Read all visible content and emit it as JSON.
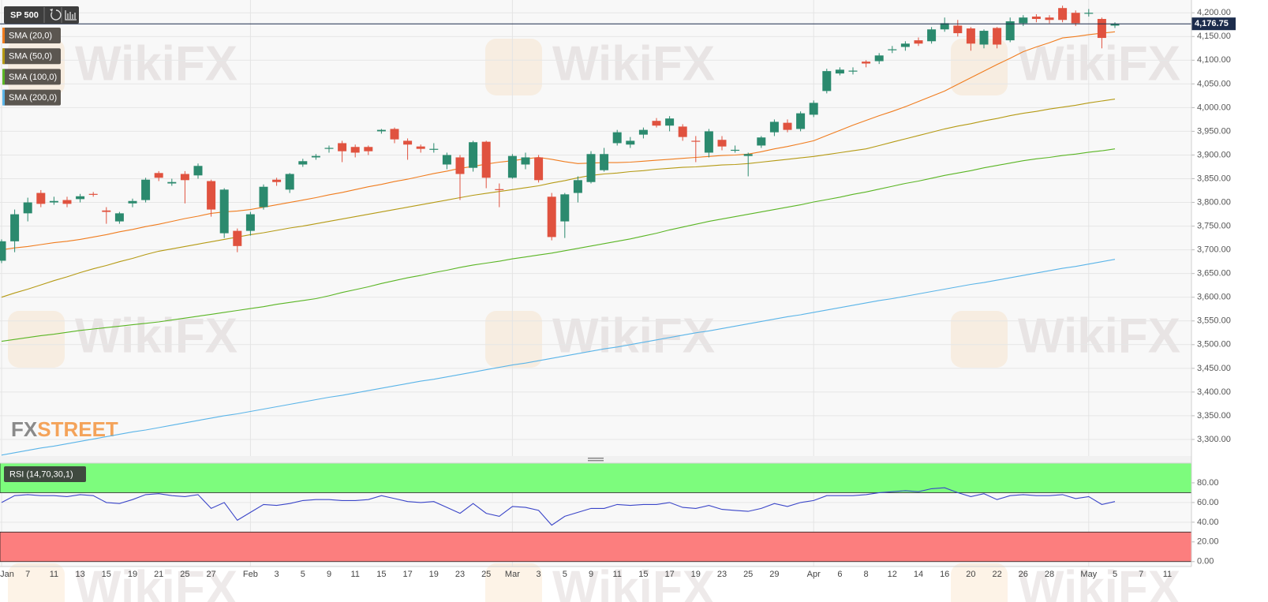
{
  "chart_data": [
    {
      "type": "candlestick",
      "title": "SP 500",
      "watermark": "WikiFX",
      "logo": {
        "first": "FX",
        "second": "STREET"
      },
      "categories": [
        "Jan",
        null,
        "7",
        null,
        "11",
        null,
        "13",
        null,
        "15",
        null,
        "19",
        null,
        "21",
        null,
        "25",
        null,
        "27",
        null,
        null,
        "Feb",
        null,
        "3",
        null,
        "5",
        null,
        "9",
        null,
        "11",
        null,
        "15",
        null,
        "17",
        null,
        "19",
        null,
        "23",
        null,
        "25",
        null,
        "Mar",
        null,
        "3",
        null,
        "5",
        null,
        "9",
        null,
        "11",
        null,
        "15",
        null,
        "17",
        null,
        "19",
        null,
        "23",
        null,
        "25",
        null,
        "29",
        null,
        null,
        "Apr",
        null,
        "6",
        null,
        "8",
        null,
        "12",
        null,
        "14",
        null,
        "16",
        null,
        "20",
        null,
        "22",
        null,
        "26",
        null,
        "28",
        null,
        null,
        "May",
        null,
        "5",
        null,
        "7",
        null,
        "11"
      ],
      "open": [
        3677,
        3718,
        3777,
        3820,
        3800,
        3805,
        3807,
        3818,
        3783,
        3760,
        3798,
        3805,
        3862,
        3840,
        3860,
        3857,
        3845,
        3735,
        3740,
        3740,
        3790,
        3848,
        3827,
        3880,
        3895,
        3913,
        3925,
        3917,
        3917,
        3950,
        3955,
        3930,
        3918,
        3912,
        3880,
        3895,
        3873,
        3928,
        3828,
        3852,
        3880,
        3895,
        3812,
        3760,
        3820,
        3843,
        3868,
        3925,
        3922,
        3943,
        3972,
        3962,
        3960,
        3930,
        3905,
        3932,
        3910,
        3898,
        3920,
        3948,
        3968,
        3955,
        3985,
        4035,
        4072,
        4077,
        4097,
        4098,
        4122,
        4128,
        4142,
        4140,
        4165,
        4173,
        4167,
        4133,
        4168,
        4142,
        4178,
        4192,
        4190,
        4210,
        4200,
        4198,
        4187,
        4173,
        null,
        null,
        null,
        null
      ],
      "high": [
        3722,
        3785,
        3810,
        3826,
        3812,
        3812,
        3818,
        3822,
        3790,
        3780,
        3808,
        3852,
        3866,
        3850,
        3866,
        3882,
        3848,
        3830,
        3745,
        3780,
        3838,
        3852,
        3862,
        3892,
        3902,
        3920,
        3930,
        3922,
        3920,
        3955,
        3958,
        3935,
        3922,
        3925,
        3905,
        3900,
        3930,
        3930,
        3840,
        3902,
        3905,
        3900,
        3820,
        3820,
        3855,
        3908,
        3915,
        3953,
        3938,
        3958,
        3978,
        3982,
        3965,
        3940,
        3955,
        3940,
        3920,
        3905,
        3940,
        3975,
        3975,
        3992,
        4015,
        4082,
        4085,
        4085,
        4100,
        4115,
        4130,
        4140,
        4148,
        4170,
        4190,
        4185,
        4170,
        4165,
        4170,
        4190,
        4195,
        4197,
        4195,
        4215,
        4205,
        4208,
        4190,
        4180,
        null,
        null,
        null,
        null
      ],
      "low": [
        3672,
        3695,
        3760,
        3790,
        3795,
        3790,
        3800,
        3812,
        3755,
        3755,
        3790,
        3800,
        3845,
        3835,
        3798,
        3850,
        3770,
        3725,
        3695,
        3730,
        3785,
        3835,
        3820,
        3875,
        3890,
        3905,
        3885,
        3895,
        3900,
        3945,
        3925,
        3890,
        3905,
        3905,
        3870,
        3805,
        3865,
        3830,
        3790,
        3850,
        3870,
        3842,
        3720,
        3725,
        3800,
        3840,
        3865,
        3920,
        3915,
        3935,
        3958,
        3950,
        3930,
        3885,
        3895,
        3910,
        3905,
        3855,
        3915,
        3940,
        3948,
        3950,
        3980,
        4030,
        4068,
        4070,
        4085,
        4092,
        4115,
        4120,
        4130,
        4135,
        4160,
        4150,
        4120,
        4125,
        4125,
        4138,
        4172,
        4180,
        4178,
        4180,
        4172,
        4192,
        4125,
        4168,
        null,
        null,
        null,
        null
      ],
      "close": [
        3718,
        3775,
        3800,
        3797,
        3803,
        3797,
        3813,
        3816,
        3780,
        3777,
        3803,
        3848,
        3852,
        3843,
        3847,
        3877,
        3785,
        3827,
        3708,
        3775,
        3833,
        3843,
        3860,
        3887,
        3898,
        3915,
        3908,
        3905,
        3908,
        3953,
        3933,
        3922,
        3913,
        3913,
        3900,
        3860,
        3927,
        3852,
        3827,
        3898,
        3895,
        3847,
        3727,
        3817,
        3847,
        3902,
        3902,
        3948,
        3930,
        3953,
        3962,
        3977,
        3938,
        3929,
        3950,
        3918,
        3911,
        3902,
        3937,
        3970,
        3953,
        3988,
        4010,
        4077,
        4080,
        4078,
        4093,
        4110,
        4123,
        4135,
        4135,
        4165,
        4178,
        4157,
        4135,
        4162,
        4133,
        4182,
        4190,
        4187,
        4185,
        4185,
        4178,
        4200,
        4147,
        4176.75,
        null,
        null,
        null,
        null
      ],
      "up_color": "#2b8a6e",
      "down_color": "#e0523f",
      "series": [
        {
          "name": "SMA (20,0)",
          "color": "#f07c1e",
          "values": [
            3700,
            3704,
            3707,
            3711,
            3715,
            3718,
            3722,
            3727,
            3732,
            3738,
            3743,
            3749,
            3754,
            3760,
            3766,
            3771,
            3777,
            3780,
            3782,
            3785,
            3790,
            3795,
            3800,
            3805,
            3810,
            3816,
            3821,
            3827,
            3833,
            3838,
            3844,
            3849,
            3855,
            3861,
            3866,
            3872,
            3876,
            3881,
            3885,
            3888,
            3892,
            3895,
            3891,
            3886,
            3882,
            3883,
            3884,
            3884,
            3885,
            3887,
            3889,
            3891,
            3893,
            3895,
            3897,
            3899,
            3900,
            3902,
            3907,
            3913,
            3918,
            3924,
            3930,
            3941,
            3952,
            3963,
            3973,
            3983,
            3992,
            4002,
            4013,
            4024,
            4035,
            4049,
            4063,
            4077,
            4091,
            4104,
            4118,
            4128,
            4137,
            4147,
            4150,
            4154,
            4157,
            4160,
            null,
            null,
            null,
            null
          ]
        },
        {
          "name": "SMA (50,0)",
          "color": "#b59a14",
          "values": [
            3600,
            3609,
            3617,
            3626,
            3635,
            3643,
            3652,
            3660,
            3667,
            3675,
            3682,
            3690,
            3697,
            3702,
            3707,
            3712,
            3717,
            3722,
            3727,
            3732,
            3736,
            3741,
            3746,
            3750,
            3755,
            3760,
            3765,
            3770,
            3775,
            3780,
            3785,
            3790,
            3795,
            3800,
            3805,
            3810,
            3815,
            3819,
            3823,
            3827,
            3831,
            3835,
            3841,
            3846,
            3852,
            3857,
            3860,
            3862,
            3865,
            3867,
            3870,
            3872,
            3874,
            3875,
            3877,
            3879,
            3880,
            3882,
            3885,
            3888,
            3891,
            3894,
            3897,
            3901,
            3905,
            3909,
            3913,
            3920,
            3927,
            3934,
            3941,
            3948,
            3955,
            3961,
            3966,
            3972,
            3977,
            3983,
            3988,
            3992,
            3997,
            4001,
            4005,
            4010,
            4014,
            4018,
            null,
            null,
            null,
            null
          ]
        },
        {
          "name": "SMA (100,0)",
          "color": "#5ab524",
          "values": [
            3507,
            3511,
            3515,
            3519,
            3522,
            3526,
            3530,
            3533,
            3536,
            3539,
            3542,
            3545,
            3548,
            3552,
            3556,
            3560,
            3564,
            3568,
            3572,
            3576,
            3580,
            3585,
            3589,
            3593,
            3597,
            3603,
            3610,
            3616,
            3622,
            3629,
            3635,
            3641,
            3646,
            3652,
            3657,
            3663,
            3668,
            3672,
            3676,
            3681,
            3685,
            3689,
            3693,
            3698,
            3703,
            3708,
            3713,
            3718,
            3723,
            3729,
            3735,
            3742,
            3748,
            3754,
            3760,
            3765,
            3770,
            3775,
            3780,
            3785,
            3790,
            3795,
            3801,
            3806,
            3811,
            3817,
            3822,
            3828,
            3834,
            3840,
            3845,
            3851,
            3857,
            3862,
            3867,
            3873,
            3878,
            3883,
            3888,
            3892,
            3895,
            3899,
            3902,
            3906,
            3909,
            3913,
            null,
            null,
            null,
            null
          ]
        },
        {
          "name": "SMA (200,0)",
          "color": "#5ab4e8",
          "values": [
            3267,
            3272,
            3277,
            3282,
            3286,
            3291,
            3296,
            3301,
            3306,
            3311,
            3316,
            3320,
            3325,
            3330,
            3335,
            3340,
            3345,
            3350,
            3354,
            3359,
            3364,
            3369,
            3374,
            3379,
            3384,
            3389,
            3393,
            3398,
            3403,
            3408,
            3413,
            3418,
            3423,
            3427,
            3432,
            3437,
            3442,
            3447,
            3452,
            3457,
            3461,
            3466,
            3471,
            3476,
            3481,
            3486,
            3491,
            3495,
            3500,
            3505,
            3510,
            3515,
            3520,
            3525,
            3529,
            3534,
            3539,
            3544,
            3549,
            3554,
            3559,
            3563,
            3568,
            3573,
            3578,
            3583,
            3588,
            3593,
            3597,
            3602,
            3607,
            3612,
            3617,
            3622,
            3627,
            3631,
            3636,
            3641,
            3646,
            3651,
            3656,
            3661,
            3665,
            3670,
            3675,
            3680,
            null,
            null,
            null,
            null
          ]
        }
      ],
      "last_price": {
        "value": 4176.75,
        "label": "4,176.75"
      },
      "last_price_color": "#1c2c4c",
      "ylim": [
        3265,
        4227
      ],
      "yticks": [
        {
          "value": 3300,
          "label": "3,300.00"
        },
        {
          "value": 3350,
          "label": "3,350.00"
        },
        {
          "value": 3400,
          "label": "3,400.00"
        },
        {
          "value": 3450,
          "label": "3,450.00"
        },
        {
          "value": 3500,
          "label": "3,500.00"
        },
        {
          "value": 3550,
          "label": "3,550.00"
        },
        {
          "value": 3600,
          "label": "3,600.00"
        },
        {
          "value": 3650,
          "label": "3,650.00"
        },
        {
          "value": 3700,
          "label": "3,700.00"
        },
        {
          "value": 3750,
          "label": "3,750.00"
        },
        {
          "value": 3800,
          "label": "3,800.00"
        },
        {
          "value": 3850,
          "label": "3,850.00"
        },
        {
          "value": 3900,
          "label": "3,900.00"
        },
        {
          "value": 3950,
          "label": "3,950.00"
        },
        {
          "value": 4000,
          "label": "4,000.00"
        },
        {
          "value": 4050,
          "label": "4,050.00"
        },
        {
          "value": 4100,
          "label": "4,100.00"
        },
        {
          "value": 4150,
          "label": "4,150.00"
        },
        {
          "value": 4200,
          "label": "4,200.00"
        }
      ],
      "grid": true
    },
    {
      "type": "line",
      "series": [
        {
          "name": "RSI (14,70,30,1)",
          "color": "#3a45c8",
          "values": [
            60,
            67,
            68,
            67,
            67,
            66,
            68,
            67,
            60,
            59,
            63,
            68,
            69,
            67,
            66,
            68,
            54,
            60,
            42,
            50,
            58,
            57,
            59,
            62,
            63,
            63,
            62,
            62,
            63,
            67,
            64,
            61,
            60,
            61,
            55,
            49,
            59,
            49,
            46,
            56,
            55,
            52,
            37,
            46,
            50,
            54,
            54,
            58,
            57,
            58,
            58,
            60,
            55,
            54,
            57,
            53,
            52,
            51,
            54,
            59,
            56,
            60,
            62,
            67,
            67,
            67,
            68,
            70,
            71,
            72,
            71,
            74,
            75,
            70,
            66,
            69,
            63,
            67,
            68,
            67,
            67,
            68,
            64,
            66,
            58,
            61,
            null,
            null,
            null,
            null
          ]
        }
      ],
      "bands": [
        {
          "from": 70,
          "to": 100,
          "color": "#7dfc7d"
        },
        {
          "from": 0,
          "to": 30,
          "color": "#fc7e7e"
        }
      ],
      "ylim": [
        -5,
        100
      ],
      "yticks": [
        {
          "value": 0,
          "label": "0.00"
        },
        {
          "value": 20,
          "label": "20.00"
        },
        {
          "value": 40,
          "label": "40.00"
        },
        {
          "value": 60,
          "label": "60.00"
        },
        {
          "value": 80,
          "label": "80.00"
        }
      ],
      "grid": true
    }
  ]
}
